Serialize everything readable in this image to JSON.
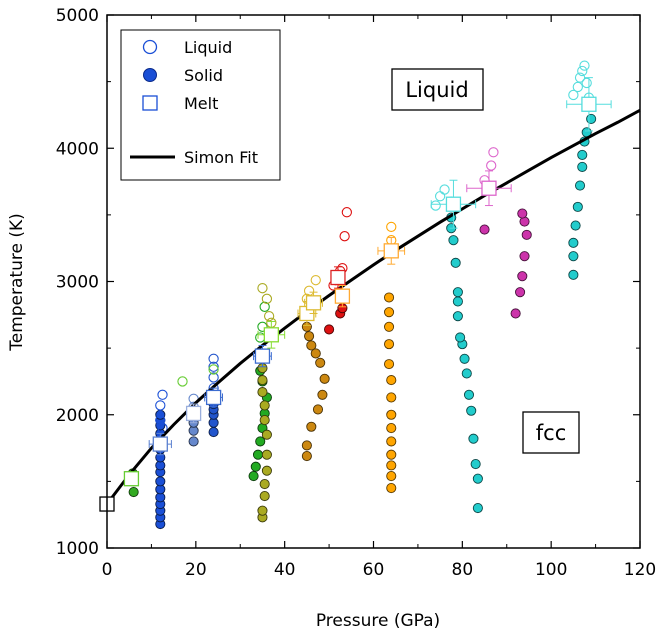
{
  "chart_data": {
    "type": "scatter",
    "xlabel": "Pressure (GPa)",
    "ylabel": "Temperature (K)",
    "xlim": [
      0,
      120
    ],
    "ylim": [
      1000,
      5000
    ],
    "x_ticks": [
      0,
      20,
      40,
      60,
      80,
      100,
      120
    ],
    "y_ticks": [
      1000,
      2000,
      3000,
      4000,
      5000
    ],
    "x_tick_labels": [
      "0",
      "20",
      "40",
      "60",
      "80",
      "100",
      "120"
    ],
    "y_tick_labels": [
      "1000",
      "2000",
      "3000",
      "4000",
      "5000"
    ],
    "grid": false,
    "legend": {
      "placement": "top-left",
      "entries": [
        {
          "label": "Liquid",
          "marker": "open-circle"
        },
        {
          "label": "Solid",
          "marker": "filled-circle"
        },
        {
          "label": "Melt",
          "marker": "open-square"
        },
        {
          "label": "Simon Fit",
          "marker": "line"
        }
      ]
    },
    "annotations": [
      "Liquid",
      "fcc"
    ],
    "simon_fit": {
      "x": [
        0,
        5,
        10,
        15,
        20,
        25,
        30,
        35,
        40,
        45,
        50,
        55,
        60,
        65,
        70,
        75,
        80,
        85,
        90,
        95,
        100,
        105,
        110,
        115,
        120
      ],
      "y": [
        1330,
        1550,
        1750,
        1925,
        2090,
        2240,
        2385,
        2520,
        2650,
        2775,
        2895,
        3010,
        3125,
        3235,
        3340,
        3445,
        3545,
        3645,
        3740,
        3835,
        3930,
        4020,
        4110,
        4195,
        4285
      ]
    },
    "melt_points": [
      {
        "x": 0,
        "y": 1330,
        "xerr": 0,
        "yerr": 0,
        "color": "#ffffff"
      },
      {
        "x": 5.5,
        "y": 1520,
        "xerr": 1.5,
        "yerr": 40,
        "color": "#66cc33"
      },
      {
        "x": 12,
        "y": 1780,
        "xerr": 2.5,
        "yerr": 80,
        "color": "#5a80d0"
      },
      {
        "x": 19.5,
        "y": 2010,
        "xerr": 1.5,
        "yerr": 70,
        "color": "#9aaedc"
      },
      {
        "x": 24,
        "y": 2130,
        "xerr": 2,
        "yerr": 70,
        "color": "#3c6cd0"
      },
      {
        "x": 35,
        "y": 2440,
        "xerr": 2,
        "yerr": 80,
        "color": "#3c6cd0"
      },
      {
        "x": 37,
        "y": 2600,
        "xerr": 3,
        "yerr": 100,
        "color": "#88dd33"
      },
      {
        "x": 45,
        "y": 2760,
        "xerr": 2,
        "yerr": 90,
        "color": "#ddbb33"
      },
      {
        "x": 46.5,
        "y": 2840,
        "xerr": 2,
        "yerr": 80,
        "color": "#ddbb33"
      },
      {
        "x": 52,
        "y": 3030,
        "xerr": 1.5,
        "yerr": 80,
        "color": "#dd2222"
      },
      {
        "x": 53,
        "y": 2890,
        "xerr": 1.5,
        "yerr": 80,
        "color": "#ffaa33"
      },
      {
        "x": 64,
        "y": 3230,
        "xerr": 3,
        "yerr": 100,
        "color": "#ffaa33"
      },
      {
        "x": 78,
        "y": 3580,
        "xerr": 5,
        "yerr": 180,
        "color": "#55dddd"
      },
      {
        "x": 86,
        "y": 3700,
        "xerr": 5,
        "yerr": 130,
        "color": "#dd66cc"
      },
      {
        "x": 108.5,
        "y": 4330,
        "xerr": 5,
        "yerr": 200,
        "color": "#55dddd"
      }
    ],
    "solid_series": [
      {
        "color": "#33aa22",
        "x": [
          6,
          6,
          5.8
        ],
        "y": [
          1420,
          1500,
          1560
        ]
      },
      {
        "color": "#1a4fd6",
        "x": [
          12,
          12,
          12,
          12,
          12,
          12,
          12,
          12,
          12,
          12,
          12,
          12,
          12,
          12,
          12,
          12
        ],
        "y": [
          1180,
          1230,
          1280,
          1330,
          1380,
          1440,
          1500,
          1570,
          1620,
          1680,
          1740,
          1800,
          1860,
          1920,
          1960,
          2000
        ]
      },
      {
        "color": "#6688cc",
        "x": [
          19.5,
          19.5,
          19.5,
          19.5
        ],
        "y": [
          1800,
          1880,
          1940,
          2000
        ]
      },
      {
        "color": "#2255cc",
        "x": [
          24,
          24,
          24,
          24,
          24
        ],
        "y": [
          1870,
          1940,
          2000,
          2040,
          2080
        ]
      },
      {
        "color": "#22aa22",
        "x": [
          33,
          33.5,
          34,
          34.5,
          35,
          35.5,
          36,
          35,
          34.5
        ],
        "y": [
          1540,
          1610,
          1700,
          1800,
          1900,
          2010,
          2130,
          2250,
          2330
        ]
      },
      {
        "color": "#aaaa22",
        "x": [
          35,
          35,
          35.5,
          35.5,
          36,
          36,
          36,
          35.5,
          35.5,
          35,
          35,
          35
        ],
        "y": [
          1230,
          1280,
          1390,
          1480,
          1580,
          1700,
          1850,
          1960,
          2070,
          2170,
          2260,
          2350
        ]
      },
      {
        "color": "#cc8811",
        "x": [
          45,
          45,
          46,
          47.5,
          48.5,
          49,
          48,
          47,
          46,
          45.5,
          45
        ],
        "y": [
          1690,
          1770,
          1910,
          2040,
          2150,
          2270,
          2390,
          2460,
          2520,
          2590,
          2660
        ]
      },
      {
        "color": "#dd1111",
        "x": [
          50,
          52.5,
          53
        ],
        "y": [
          2640,
          2760,
          2800
        ]
      },
      {
        "color": "#ffa500",
        "x": [
          64,
          64,
          64,
          64,
          64,
          64,
          64,
          64,
          64,
          63.5,
          63.5,
          63.5,
          63.5,
          63.5
        ],
        "y": [
          1450,
          1540,
          1620,
          1700,
          1800,
          1900,
          2000,
          2130,
          2260,
          2380,
          2530,
          2660,
          2770,
          2880
        ]
      },
      {
        "color": "#22cccc",
        "x": [
          83.5,
          83.5,
          83,
          82.5,
          82,
          81.5,
          81,
          80.5,
          80,
          79.5,
          79,
          79,
          79,
          78.5,
          78,
          77.5,
          77.5
        ],
        "y": [
          1300,
          1520,
          1630,
          1820,
          2030,
          2150,
          2310,
          2420,
          2530,
          2580,
          2740,
          2850,
          2920,
          3140,
          3310,
          3400,
          3480
        ]
      },
      {
        "color": "#cc33aa",
        "x": [
          85,
          92,
          93,
          93.5,
          94,
          94.5,
          94,
          93.5
        ],
        "y": [
          3390,
          2760,
          2920,
          3040,
          3190,
          3350,
          3450,
          3510
        ]
      },
      {
        "color": "#22cccc",
        "x": [
          105,
          105,
          105,
          105.5,
          106,
          106.5,
          107,
          107,
          107.5,
          108,
          109
        ],
        "y": [
          3050,
          3190,
          3290,
          3420,
          3560,
          3720,
          3860,
          3950,
          4050,
          4120,
          4220
        ]
      }
    ],
    "liquid_series": [
      {
        "color": "#1a4fd6",
        "x": [
          12,
          12,
          12.5,
          12.5
        ],
        "y": [
          1960,
          2070,
          2150,
          1900
        ]
      },
      {
        "color": "#6688cc",
        "x": [
          19.5,
          19.5
        ],
        "y": [
          2060,
          2120
        ]
      },
      {
        "color": "#2255cc",
        "x": [
          24,
          24,
          24,
          24
        ],
        "y": [
          2200,
          2280,
          2360,
          2420
        ]
      },
      {
        "color": "#66cc33",
        "x": [
          17,
          24
        ],
        "y": [
          2250,
          2340
        ]
      },
      {
        "color": "#22aa22",
        "x": [
          34.5,
          35,
          35.5
        ],
        "y": [
          2580,
          2660,
          2810
        ]
      },
      {
        "color": "#aaaa22",
        "x": [
          35,
          36,
          36.5,
          37
        ],
        "y": [
          2950,
          2870,
          2740,
          2690
        ]
      },
      {
        "color": "#ddbb33",
        "x": [
          45,
          45.5,
          47
        ],
        "y": [
          2870,
          2930,
          3010
        ]
      },
      {
        "color": "#dd1111",
        "x": [
          51,
          51.5,
          52,
          52.5,
          53,
          53.5,
          54
        ],
        "y": [
          2970,
          3010,
          3050,
          3080,
          3100,
          3340,
          3520
        ]
      },
      {
        "color": "#ffa500",
        "x": [
          64,
          64
        ],
        "y": [
          3310,
          3410
        ]
      },
      {
        "color": "#55dddd",
        "x": [
          74,
          75,
          76,
          77.5
        ],
        "y": [
          3570,
          3640,
          3690,
          3600
        ]
      },
      {
        "color": "#dd66cc",
        "x": [
          85,
          86.5,
          87
        ],
        "y": [
          3760,
          3870,
          3970
        ]
      },
      {
        "color": "#55dddd",
        "x": [
          105,
          106,
          106.5,
          107,
          107.5,
          108,
          108.5
        ],
        "y": [
          4400,
          4460,
          4530,
          4580,
          4620,
          4490,
          4380
        ]
      }
    ]
  }
}
